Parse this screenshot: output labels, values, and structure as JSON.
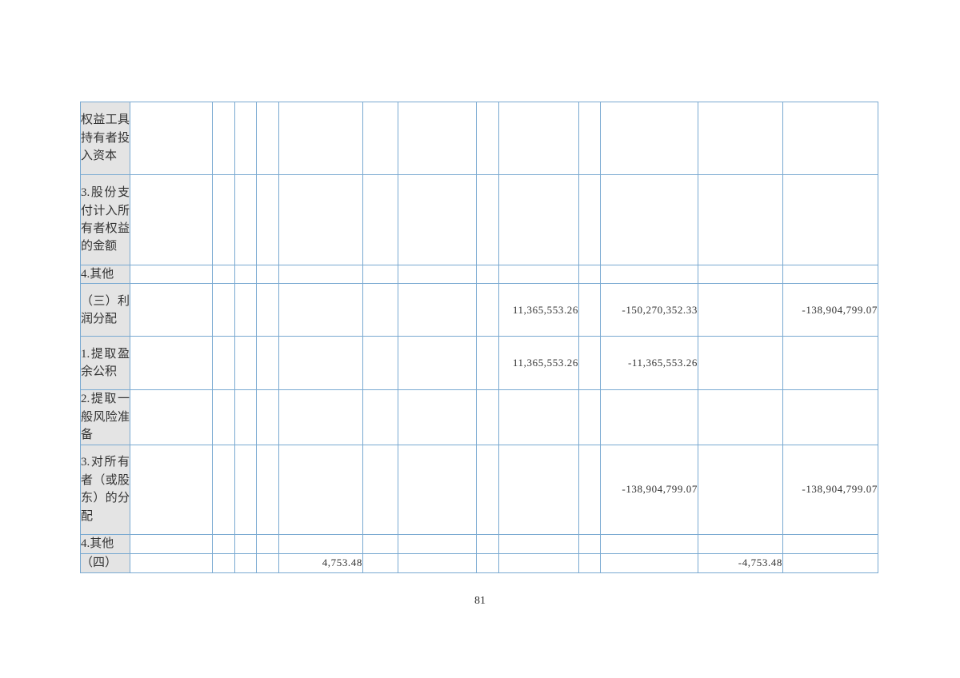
{
  "page_number": "81",
  "colors": {
    "grid_line": "#79a9d1",
    "label_background": "#e4e4e4",
    "text": "#333333"
  },
  "table": {
    "description_visible_rows": "statement-of-changes-in-equity fragment",
    "rows": [
      {
        "label": "权益工具持有者投入资本",
        "values": {}
      },
      {
        "label": "3.股份支付计入所有者权益的金额",
        "values": {}
      },
      {
        "label": "4.其他",
        "values": {}
      },
      {
        "label": "（三）利润分配",
        "values": {
          "c10": "11,365,553.26",
          "c12": "-150,270,352.33",
          "c14": "-138,904,799.07"
        }
      },
      {
        "label": "1.提取盈余公积",
        "values": {
          "c10": "11,365,553.26",
          "c12": "-11,365,553.26"
        }
      },
      {
        "label": "2.提取一般风险准备",
        "values": {}
      },
      {
        "label": "3.对所有者（或股东）的分配",
        "values": {
          "c12": "-138,904,799.07",
          "c14": "-138,904,799.07"
        }
      },
      {
        "label": "4.其他",
        "values": {}
      },
      {
        "label": "（四）",
        "values": {
          "c6": "4,753.48",
          "c13": "-4,753.48"
        }
      }
    ]
  }
}
